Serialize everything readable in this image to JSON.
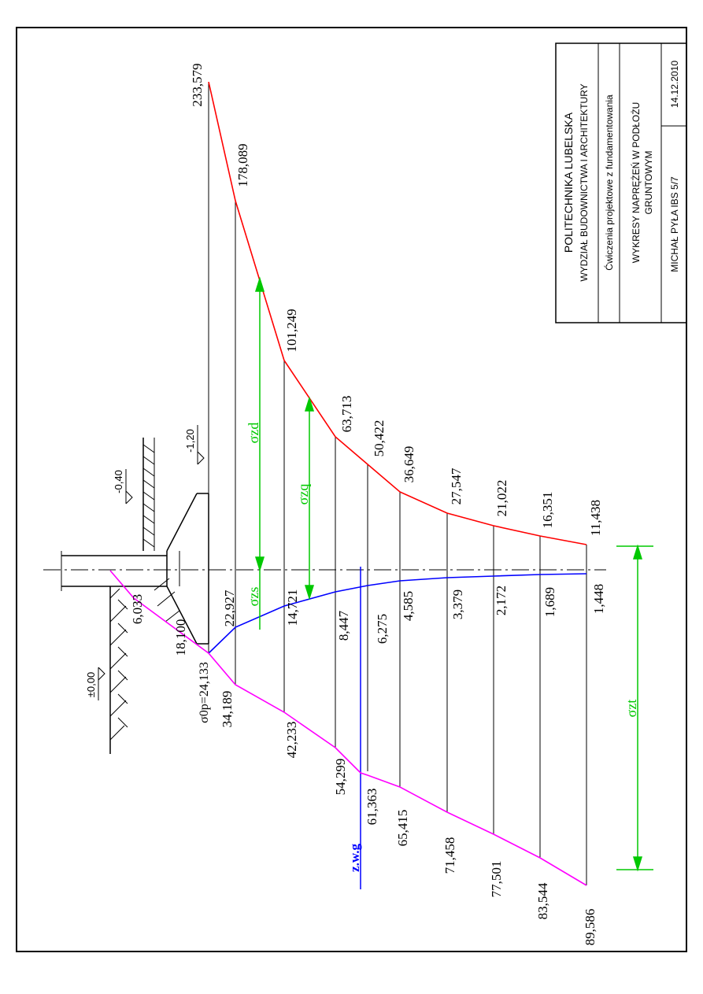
{
  "title_block": {
    "university": "POLITECHNIKA LUBELSKA",
    "faculty": "WYDZIAŁ BUDOWNICTWA I ARCHITEKTURY",
    "course": "Ćwiczenia projektowe z fundamentowania",
    "drawing_title_1": "WYKRESY NAPRĘŻEŃ W PODŁOŻU",
    "drawing_title_2": "GRUNTOWYM",
    "author": "MICHAŁ PYŁA IBS 5/7",
    "date": "14.12.2010"
  },
  "levels": {
    "ground": "±0,00",
    "floor": "-0,40",
    "foundation_base": "-1,20"
  },
  "symbols": {
    "sigma_zd": "σzd",
    "sigma_zq": "σzq",
    "sigma_zs": "σzs",
    "sigma_zt": "σzt",
    "sigma_0p": "σ0p=24,133",
    "water_table": "z.w.g"
  },
  "colors": {
    "sigma_zd": "#ff0000",
    "sigma_zs": "#0000ff",
    "sigma_zt": "#ff00ff",
    "dimension": "#00c800",
    "outline": "#000000"
  },
  "red_values": [
    "233,579",
    "178,089",
    "101,249",
    "63,713",
    "50,422",
    "36,649",
    "27,547",
    "21,022",
    "16,351",
    "11,438"
  ],
  "blue_values": [
    "22,927",
    "14,721",
    "8,447",
    "6,275",
    "4,585",
    "3,379",
    "2,172",
    "1,689",
    "1,448"
  ],
  "magenta_values": [
    "6,033",
    "18,100",
    "34,189",
    "42,233",
    "54,299",
    "61,363",
    "65,415",
    "71,458",
    "77,501",
    "83,544",
    "89,586"
  ]
}
